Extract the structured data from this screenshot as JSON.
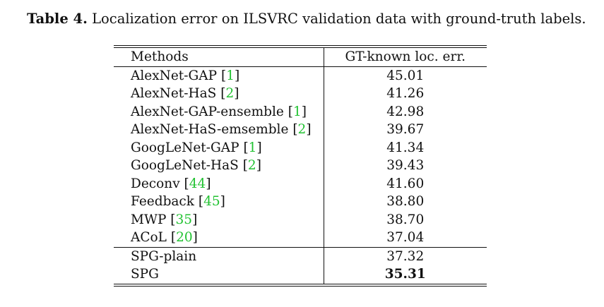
{
  "caption": {
    "label": "Table 4.",
    "text": "Localization error on ILSVRC validation data with ground-truth labels."
  },
  "table": {
    "headers": [
      "Methods",
      "GT-known loc. err."
    ],
    "rows": [
      {
        "method": "AlexNet-GAP",
        "cite": "1",
        "value": "45.01"
      },
      {
        "method": "AlexNet-HaS",
        "cite": "2",
        "value": "41.26"
      },
      {
        "method": "AlexNet-GAP-ensemble",
        "cite": "1",
        "value": "42.98"
      },
      {
        "method": "AlexNet-HaS-emsemble",
        "cite": "2",
        "value": "39.67"
      },
      {
        "method": "GoogLeNet-GAP",
        "cite": "1",
        "value": "41.34"
      },
      {
        "method": "GoogLeNet-HaS",
        "cite": "2",
        "value": "39.43"
      },
      {
        "method": "Deconv",
        "cite": "44",
        "value": "41.60"
      },
      {
        "method": "Feedback",
        "cite": "45",
        "value": "38.80"
      },
      {
        "method": "MWP",
        "cite": "35",
        "value": "38.70"
      },
      {
        "method": "ACoL",
        "cite": "20",
        "value": "37.04"
      },
      {
        "method": "SPG-plain",
        "value": "37.32"
      },
      {
        "method": "SPG",
        "value": "35.31"
      }
    ]
  },
  "colors": {
    "citation": "#22c232"
  }
}
